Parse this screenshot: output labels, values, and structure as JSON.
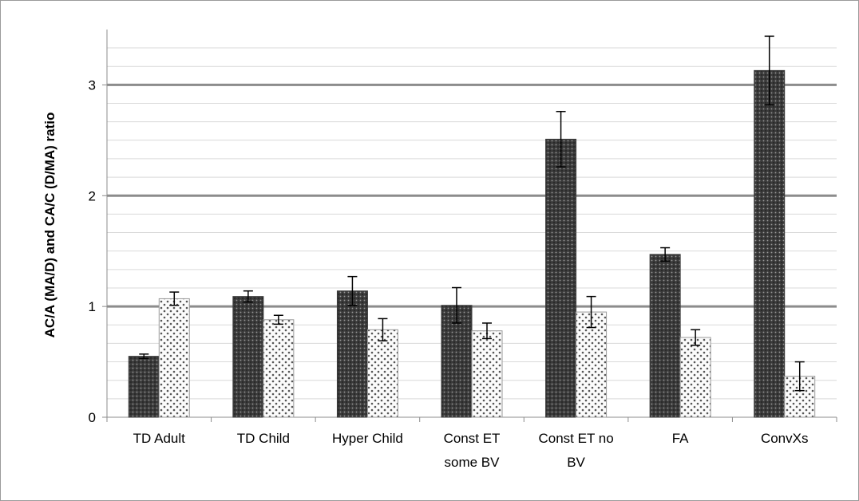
{
  "chart_data": {
    "type": "bar",
    "title": "",
    "xlabel": "",
    "ylabel": "AC/A (MA/D) and CA/C (D/MA)  ratio",
    "ylim": [
      0,
      3.5
    ],
    "major_ticks": [
      0,
      1,
      2,
      3
    ],
    "minor_gridline_step": 0.1667,
    "grid": true,
    "legend": "none",
    "categories": [
      [
        "TD Adult"
      ],
      [
        "TD Child"
      ],
      [
        "Hyper Child"
      ],
      [
        "Const ET",
        "some BV"
      ],
      [
        "Const ET no",
        "BV"
      ],
      [
        "FA"
      ],
      [
        "ConvXs"
      ]
    ],
    "series": [
      {
        "pattern": "dark-dotted",
        "color": "#333333",
        "values": [
          0.55,
          1.09,
          1.14,
          1.01,
          2.51,
          1.47,
          3.13
        ],
        "error": [
          0.02,
          0.05,
          0.13,
          0.16,
          0.25,
          0.06,
          0.31
        ]
      },
      {
        "pattern": "light-dotted",
        "color": "#f4f4f4",
        "values": [
          1.07,
          0.88,
          0.79,
          0.78,
          0.95,
          0.72,
          0.37
        ],
        "error": [
          0.06,
          0.04,
          0.1,
          0.07,
          0.14,
          0.07,
          0.13
        ]
      }
    ]
  }
}
